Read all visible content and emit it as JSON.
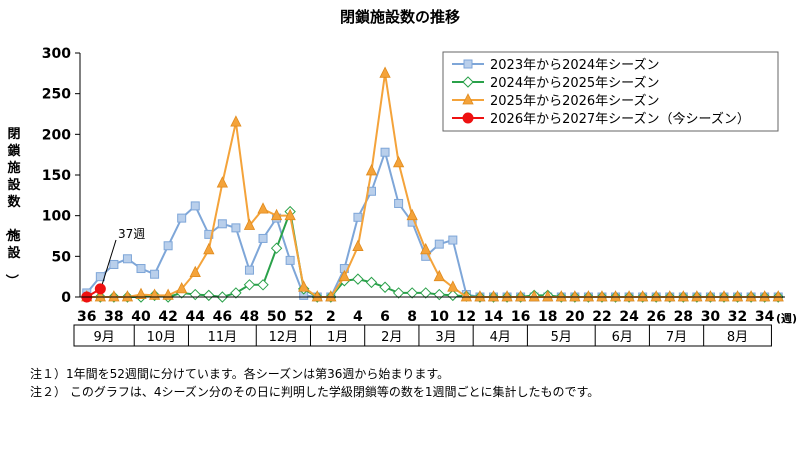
{
  "notes": [
    "注１）1年間を52週間に分けています。各シーズンは第36週から始まります。",
    "注２） このグラフは、4シーズン分のその日に判明した学級閉鎖等の数を1週間ごとに集計したものです。"
  ],
  "chart_data": {
    "type": "line",
    "title": "閉鎖施設数の推移",
    "ylabel": "閉鎖施設数（施設）",
    "xlabel_unit": "(週)",
    "ylim": [
      0,
      300
    ],
    "yticks": [
      0,
      50,
      100,
      150,
      200,
      250,
      300
    ],
    "grid": false,
    "legend_position": "top-right",
    "weeks": [
      36,
      37,
      38,
      39,
      40,
      41,
      42,
      43,
      44,
      45,
      46,
      47,
      48,
      49,
      50,
      51,
      52,
      1,
      2,
      3,
      4,
      5,
      6,
      7,
      8,
      9,
      10,
      11,
      12,
      13,
      14,
      15,
      16,
      17,
      18,
      19,
      20,
      21,
      22,
      23,
      24,
      25,
      26,
      27,
      28,
      29,
      30,
      31,
      32,
      33,
      34,
      35
    ],
    "week_tick_labels": [
      "36",
      "38",
      "40",
      "42",
      "44",
      "46",
      "48",
      "50",
      "52",
      "2",
      "4",
      "6",
      "8",
      "10",
      "12",
      "14",
      "16",
      "18",
      "20",
      "22",
      "24",
      "26",
      "28",
      "30",
      "32",
      "34"
    ],
    "month_labels": [
      {
        "label": "9月",
        "start": 0,
        "end": 4
      },
      {
        "label": "10月",
        "start": 4,
        "end": 8
      },
      {
        "label": "11月",
        "start": 8,
        "end": 13
      },
      {
        "label": "12月",
        "start": 13,
        "end": 17
      },
      {
        "label": "1月",
        "start": 17,
        "end": 21
      },
      {
        "label": "2月",
        "start": 21,
        "end": 25
      },
      {
        "label": "3月",
        "start": 25,
        "end": 29
      },
      {
        "label": "4月",
        "start": 29,
        "end": 33
      },
      {
        "label": "5月",
        "start": 33,
        "end": 38
      },
      {
        "label": "6月",
        "start": 38,
        "end": 42
      },
      {
        "label": "7月",
        "start": 42,
        "end": 46
      },
      {
        "label": "8月",
        "start": 46,
        "end": 51
      }
    ],
    "annotation": {
      "label": "37週",
      "index": 1
    },
    "series": [
      {
        "name": "2023年から2024年シーズン",
        "color": "#7ea6d8",
        "marker": "square",
        "values": [
          5,
          25,
          40,
          47,
          35,
          28,
          63,
          97,
          112,
          77,
          90,
          85,
          33,
          72,
          97,
          45,
          2,
          0,
          0,
          35,
          98,
          130,
          178,
          115,
          92,
          50,
          65,
          70,
          3,
          0,
          0,
          0,
          0,
          0,
          0,
          0,
          0,
          0,
          0,
          0,
          0,
          0,
          0,
          0,
          0,
          0,
          0,
          0,
          0,
          0,
          0,
          0
        ]
      },
      {
        "name": "2024年から2025年シーズン",
        "color": "#2aa14a",
        "marker": "diamond",
        "values": [
          0,
          0,
          0,
          0,
          0,
          2,
          0,
          5,
          3,
          2,
          0,
          5,
          15,
          15,
          60,
          105,
          10,
          0,
          0,
          20,
          22,
          18,
          12,
          5,
          5,
          5,
          3,
          2,
          1,
          0,
          0,
          0,
          0,
          2,
          2,
          0,
          0,
          0,
          0,
          0,
          0,
          0,
          0,
          0,
          0,
          0,
          0,
          0,
          0,
          0,
          0,
          0
        ]
      },
      {
        "name": "2025年から2026年シーズン",
        "color": "#f4a33a",
        "marker": "triangle",
        "values": [
          0,
          0,
          0,
          0,
          3,
          2,
          2,
          10,
          30,
          58,
          140,
          215,
          88,
          108,
          100,
          100,
          12,
          0,
          0,
          25,
          62,
          155,
          275,
          165,
          100,
          58,
          25,
          12,
          0,
          0,
          0,
          0,
          0,
          0,
          0,
          0,
          0,
          0,
          0,
          0,
          0,
          0,
          0,
          0,
          0,
          0,
          0,
          0,
          0,
          0,
          0,
          0
        ]
      },
      {
        "name": "2026年から2027年シーズン（今シーズン）",
        "color": "#ee1111",
        "marker": "circle",
        "values": [
          0,
          10
        ]
      }
    ]
  }
}
